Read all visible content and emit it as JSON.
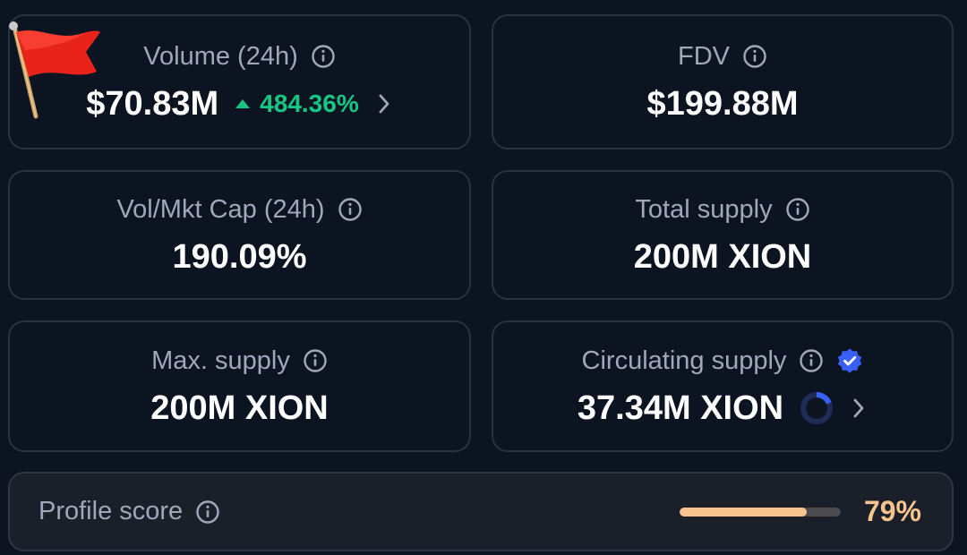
{
  "volume": {
    "label": "Volume (24h)",
    "value": "$70.83M",
    "change": "484.36%",
    "change_direction": "up"
  },
  "fdv": {
    "label": "FDV",
    "value": "$199.88M"
  },
  "vol_mkt_cap": {
    "label": "Vol/Mkt Cap (24h)",
    "value": "190.09%"
  },
  "total_supply": {
    "label": "Total supply",
    "value": "200M XION"
  },
  "max_supply": {
    "label": "Max. supply",
    "value": "200M XION"
  },
  "circulating_supply": {
    "label": "Circulating supply",
    "value": "37.34M XION",
    "ratio": 0.1867,
    "verified": true
  },
  "profile_score": {
    "label": "Profile score",
    "value": "79%",
    "fraction": 0.79
  },
  "colors": {
    "background": "#0d1421",
    "border": "#2a3140",
    "label": "#a1a7bb",
    "value": "#ffffff",
    "positive": "#16c784",
    "score": "#f6c48f",
    "verified": "#3861fb",
    "flag": "#e8231a"
  },
  "icons": {
    "info": "info-circle-icon",
    "chevron": "chevron-right-icon",
    "up": "caret-up-icon",
    "verified": "verified-badge-icon",
    "flag": "red-flag-icon"
  }
}
